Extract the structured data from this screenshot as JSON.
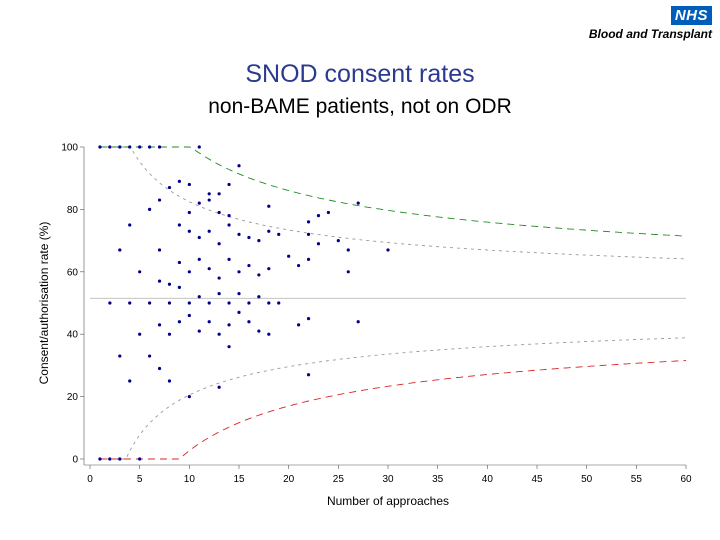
{
  "logo": {
    "nhs": "NHS",
    "org": "Blood and Transplant"
  },
  "chart_data": {
    "type": "scatter",
    "title": "SNOD consent rates",
    "subtitle": "non-BAME patients, not on ODR",
    "xlabel": "Number of approaches",
    "ylabel": "Consent/authorisation rate (%)",
    "xlim": [
      0,
      60
    ],
    "ylim": [
      0,
      100
    ],
    "xticks": [
      0,
      5,
      10,
      15,
      20,
      25,
      30,
      35,
      40,
      45,
      50,
      55,
      60
    ],
    "yticks": [
      0,
      20,
      40,
      60,
      80,
      100
    ],
    "grid": false,
    "legend": "none",
    "mean": 51.5,
    "colors": {
      "points": "#00008b",
      "mean_line": "#bbbbbb",
      "inner_limit": "#999999",
      "upper_limit": "#228b22",
      "lower_limit": "#d62728"
    },
    "points": [
      [
        1,
        100
      ],
      [
        2,
        100
      ],
      [
        3,
        100
      ],
      [
        4,
        100
      ],
      [
        5,
        100
      ],
      [
        6,
        100
      ],
      [
        7,
        100
      ],
      [
        11,
        100
      ],
      [
        15,
        94
      ],
      [
        14,
        88
      ],
      [
        9,
        89
      ],
      [
        10,
        88
      ],
      [
        12,
        85
      ],
      [
        13,
        85
      ],
      [
        8,
        87
      ],
      [
        7,
        83
      ],
      [
        6,
        80
      ],
      [
        11,
        82
      ],
      [
        12,
        83
      ],
      [
        10,
        79
      ],
      [
        13,
        79
      ],
      [
        14,
        78
      ],
      [
        18,
        81
      ],
      [
        22,
        76
      ],
      [
        23,
        78
      ],
      [
        24,
        79
      ],
      [
        27,
        82
      ],
      [
        3,
        67
      ],
      [
        4,
        75
      ],
      [
        7,
        67
      ],
      [
        9,
        75
      ],
      [
        10,
        73
      ],
      [
        11,
        71
      ],
      [
        12,
        73
      ],
      [
        13,
        69
      ],
      [
        14,
        75
      ],
      [
        15,
        72
      ],
      [
        16,
        71
      ],
      [
        17,
        70
      ],
      [
        18,
        73
      ],
      [
        19,
        72
      ],
      [
        22,
        72
      ],
      [
        23,
        69
      ],
      [
        25,
        70
      ],
      [
        26,
        67
      ],
      [
        30,
        67
      ],
      [
        5,
        60
      ],
      [
        7,
        57
      ],
      [
        8,
        56
      ],
      [
        9,
        63
      ],
      [
        10,
        60
      ],
      [
        11,
        64
      ],
      [
        12,
        61
      ],
      [
        13,
        58
      ],
      [
        14,
        64
      ],
      [
        15,
        60
      ],
      [
        16,
        62
      ],
      [
        17,
        59
      ],
      [
        18,
        61
      ],
      [
        20,
        65
      ],
      [
        21,
        62
      ],
      [
        22,
        64
      ],
      [
        26,
        60
      ],
      [
        2,
        50
      ],
      [
        4,
        50
      ],
      [
        6,
        50
      ],
      [
        8,
        50
      ],
      [
        9,
        55
      ],
      [
        10,
        50
      ],
      [
        11,
        52
      ],
      [
        12,
        50
      ],
      [
        13,
        53
      ],
      [
        14,
        50
      ],
      [
        15,
        53
      ],
      [
        16,
        50
      ],
      [
        17,
        52
      ],
      [
        18,
        50
      ],
      [
        19,
        50
      ],
      [
        5,
        40
      ],
      [
        7,
        43
      ],
      [
        8,
        40
      ],
      [
        9,
        44
      ],
      [
        10,
        46
      ],
      [
        11,
        41
      ],
      [
        12,
        44
      ],
      [
        13,
        40
      ],
      [
        14,
        43
      ],
      [
        15,
        47
      ],
      [
        16,
        44
      ],
      [
        17,
        41
      ],
      [
        18,
        40
      ],
      [
        21,
        43
      ],
      [
        22,
        45
      ],
      [
        27,
        44
      ],
      [
        3,
        33
      ],
      [
        6,
        33
      ],
      [
        7,
        29
      ],
      [
        8,
        25
      ],
      [
        4,
        25
      ],
      [
        10,
        20
      ],
      [
        14,
        36
      ],
      [
        13,
        23
      ],
      [
        22,
        27
      ],
      [
        1,
        0
      ],
      [
        2,
        0
      ],
      [
        3,
        0
      ],
      [
        5,
        0
      ]
    ]
  }
}
